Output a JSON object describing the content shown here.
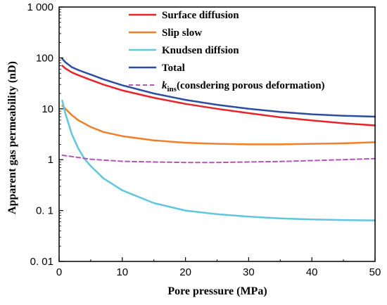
{
  "chart_data": {
    "type": "line",
    "xlabel": "Pore pressure (MPa)",
    "ylabel": "Apparent gas permeability (nD)",
    "xlim": [
      0,
      50
    ],
    "ylim": [
      0.01,
      1000
    ],
    "yscale": "log",
    "xticks": [
      0,
      10,
      20,
      30,
      40,
      50
    ],
    "xtick_labels": [
      "0",
      "10",
      "20",
      "30",
      "40",
      "50"
    ],
    "yticks": [
      0.01,
      0.1,
      1,
      10,
      100,
      1000
    ],
    "ytick_labels": [
      "0. 01",
      "0. 1",
      "1",
      "10",
      "100",
      "1 000"
    ],
    "grid": false,
    "legend_position": "top-right",
    "series": [
      {
        "name": "Surface diffusion",
        "color": "#e8232a",
        "dash": "solid",
        "points": [
          [
            0.5,
            70
          ],
          [
            1,
            62
          ],
          [
            2,
            52
          ],
          [
            3,
            46
          ],
          [
            5,
            37
          ],
          [
            7,
            30
          ],
          [
            10,
            23
          ],
          [
            15,
            16.5
          ],
          [
            20,
            12.5
          ],
          [
            25,
            10
          ],
          [
            30,
            8.2
          ],
          [
            35,
            6.8
          ],
          [
            40,
            5.9
          ],
          [
            45,
            5.2
          ],
          [
            50,
            4.7
          ]
        ]
      },
      {
        "name": "Slip slow",
        "color": "#f07f2a",
        "dash": "solid",
        "points": [
          [
            0.5,
            11.5
          ],
          [
            1,
            10
          ],
          [
            2,
            7.5
          ],
          [
            3,
            6
          ],
          [
            5,
            4.4
          ],
          [
            7,
            3.5
          ],
          [
            10,
            2.9
          ],
          [
            15,
            2.4
          ],
          [
            20,
            2.15
          ],
          [
            25,
            2.05
          ],
          [
            30,
            2.0
          ],
          [
            35,
            2.0
          ],
          [
            40,
            2.05
          ],
          [
            45,
            2.1
          ],
          [
            50,
            2.2
          ]
        ]
      },
      {
        "name": "Knudsen diffsion",
        "color": "#5fc6dc",
        "dash": "solid",
        "points": [
          [
            0.5,
            14.5
          ],
          [
            1,
            8
          ],
          [
            2,
            3.2
          ],
          [
            3,
            1.7
          ],
          [
            4,
            1.05
          ],
          [
            5,
            0.75
          ],
          [
            7,
            0.43
          ],
          [
            10,
            0.25
          ],
          [
            15,
            0.14
          ],
          [
            20,
            0.1
          ],
          [
            25,
            0.085
          ],
          [
            30,
            0.076
          ],
          [
            35,
            0.07
          ],
          [
            40,
            0.067
          ],
          [
            45,
            0.065
          ],
          [
            50,
            0.064
          ]
        ]
      },
      {
        "name": "Total",
        "color": "#2b4ea0",
        "dash": "solid",
        "points": [
          [
            0.5,
            96
          ],
          [
            1,
            82
          ],
          [
            2,
            66
          ],
          [
            3,
            58
          ],
          [
            5,
            47
          ],
          [
            7,
            38
          ],
          [
            10,
            29
          ],
          [
            15,
            20
          ],
          [
            20,
            15
          ],
          [
            25,
            12
          ],
          [
            30,
            10
          ],
          [
            35,
            8.7
          ],
          [
            40,
            7.8
          ],
          [
            45,
            7.3
          ],
          [
            50,
            7.0
          ]
        ]
      },
      {
        "name": "k_ins(consdering porous deformation)",
        "color": "#b455b6",
        "dash": "dashed",
        "points": [
          [
            0.5,
            1.22
          ],
          [
            2,
            1.15
          ],
          [
            5,
            1.02
          ],
          [
            10,
            0.93
          ],
          [
            15,
            0.9
          ],
          [
            20,
            0.88
          ],
          [
            25,
            0.88
          ],
          [
            30,
            0.9
          ],
          [
            35,
            0.92
          ],
          [
            40,
            0.96
          ],
          [
            45,
            1.0
          ],
          [
            50,
            1.05
          ]
        ]
      }
    ]
  },
  "legend": {
    "items": [
      {
        "label": "Surface diffusion",
        "color": "#e8232a",
        "dash": "solid"
      },
      {
        "label": "Slip slow",
        "color": "#f07f2a",
        "dash": "solid"
      },
      {
        "label": "Knudsen diffsion",
        "color": "#5fc6dc",
        "dash": "solid"
      },
      {
        "label": "Total",
        "color": "#2b4ea0",
        "dash": "solid"
      },
      {
        "label_main": "k",
        "label_sub": "ins",
        "label_rest": "(consdering porous deformation)",
        "color": "#b455b6",
        "dash": "dashed"
      }
    ]
  }
}
